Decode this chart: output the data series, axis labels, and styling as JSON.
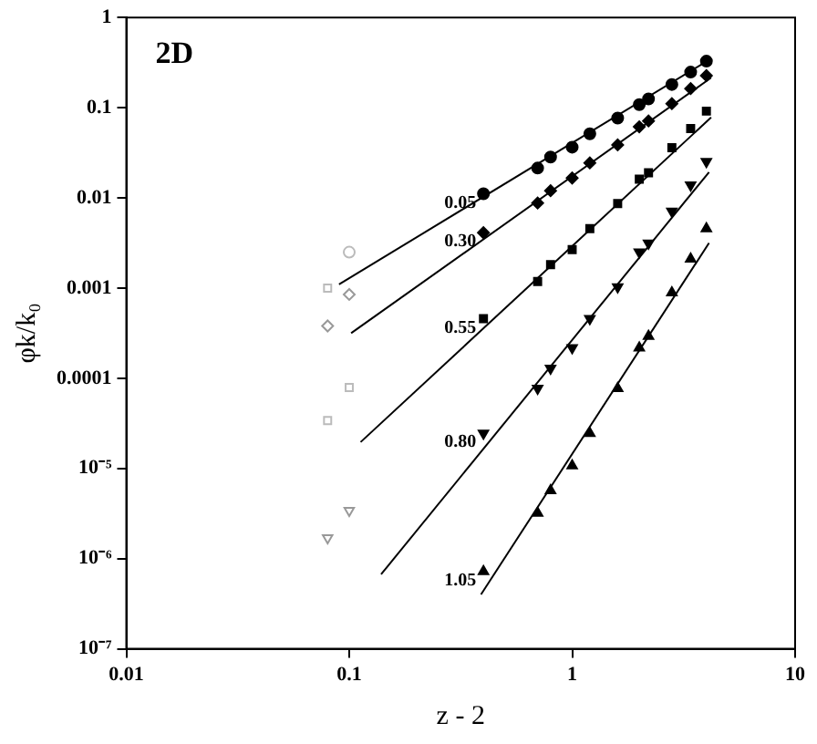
{
  "chart_data": {
    "type": "scatter",
    "xlabel": "z - 2",
    "ylabel": "φk/k₀",
    "log": "xy",
    "grid": false,
    "legend": false,
    "xlim": [
      0.01,
      10
    ],
    "xticks": [
      0.01,
      0.1,
      1,
      10
    ],
    "ylim": [
      1e-07,
      1
    ],
    "yticks": [
      {
        "value": 1e-07,
        "label": "10⁻⁷"
      },
      {
        "value": 1e-06,
        "label": "10⁻⁶"
      },
      {
        "value": 1e-05,
        "label": "10⁻⁵"
      },
      0.0001,
      0.001,
      0.01,
      0.1,
      1
    ],
    "annotations": [
      "2D"
    ],
    "series": [
      {
        "type": "scatter",
        "name": "0.05",
        "marker": "circle",
        "color": "#000000",
        "x": [
          0.4,
          0.7,
          0.8,
          1.0,
          1.2,
          1.6,
          2.0,
          2.2,
          2.8,
          3.4,
          4.0
        ],
        "values": [
          0.0111,
          0.0214,
          0.0284,
          0.0365,
          0.0513,
          0.0767,
          0.108,
          0.125,
          0.181,
          0.248,
          0.328
        ]
      },
      {
        "type": "scatter",
        "name": "0.30",
        "marker": "diamond",
        "color": "#000000",
        "x": [
          0.4,
          0.7,
          0.8,
          1.0,
          1.2,
          1.6,
          2.0,
          2.2,
          2.8,
          3.4,
          4.0
        ],
        "values": [
          0.00411,
          0.00877,
          0.012,
          0.0166,
          0.0244,
          0.0387,
          0.0614,
          0.0712,
          0.111,
          0.163,
          0.227
        ]
      },
      {
        "type": "scatter",
        "name": "0.55",
        "marker": "square",
        "color": "#000000",
        "x": [
          0.4,
          0.7,
          0.8,
          1.0,
          1.2,
          1.6,
          2.0,
          2.2,
          2.8,
          3.4,
          4.0
        ],
        "values": [
          0.000457,
          0.00118,
          0.00182,
          0.00267,
          0.00457,
          0.00865,
          0.0161,
          0.019,
          0.036,
          0.0588,
          0.0916
        ]
      },
      {
        "type": "scatter",
        "name": "0.80",
        "marker": "triangle-down",
        "color": "#000000",
        "x": [
          0.4,
          0.7,
          0.8,
          1.0,
          1.2,
          1.6,
          2.0,
          2.2,
          2.8,
          3.4,
          4.0
        ],
        "values": [
          2.45e-05,
          7.7e-05,
          0.000129,
          0.000218,
          0.000457,
          0.00103,
          0.0025,
          0.00315,
          0.0071,
          0.0139,
          0.0252
        ]
      },
      {
        "type": "scatter",
        "name": "1.05",
        "marker": "triangle",
        "color": "#000000",
        "x": [
          0.4,
          0.7,
          0.8,
          1.0,
          1.2,
          1.6,
          2.0,
          2.2,
          2.8,
          3.4,
          4.0
        ],
        "values": [
          7.2e-07,
          3.2e-06,
          5.7e-06,
          1.07e-05,
          2.45e-05,
          7.7e-05,
          0.000218,
          0.000293,
          0.00089,
          0.0021,
          0.00457
        ]
      },
      {
        "type": "scatter",
        "marker": "circle",
        "color": "#bbbbbb",
        "x": [
          0.1
        ],
        "values": [
          0.0025
        ]
      },
      {
        "type": "scatter",
        "marker": "square",
        "color": "#bbbbbb",
        "x": [
          0.08,
          0.1,
          0.08
        ],
        "values": [
          0.001,
          7.9e-05,
          3.4e-05
        ]
      },
      {
        "type": "scatter",
        "marker": "diamond",
        "color": "#999999",
        "x": [
          0.1,
          0.08
        ],
        "values": [
          0.00085,
          0.00038
        ]
      },
      {
        "type": "scatter",
        "marker": "triangle-down",
        "color": "#999999",
        "x": [
          0.1,
          0.08
        ],
        "values": [
          3.4e-06,
          1.7e-06
        ]
      },
      {
        "type": "line",
        "marker": "none",
        "color": "#000000",
        "x": [
          0.09,
          4.2
        ],
        "values": [
          0.0011,
          0.35
        ]
      },
      {
        "type": "line",
        "marker": "none",
        "color": "#000000",
        "x": [
          0.102,
          4.2
        ],
        "values": [
          0.000316,
          0.215
        ]
      },
      {
        "type": "line",
        "marker": "none",
        "color": "#000000",
        "x": [
          0.1125,
          4.2
        ],
        "values": [
          1.96e-05,
          0.078
        ]
      },
      {
        "type": "line",
        "marker": "none",
        "color": "#000000",
        "x": [
          0.139,
          4.11
        ],
        "values": [
          6.7e-07,
          0.0193
        ]
      },
      {
        "type": "line",
        "marker": "none",
        "color": "#000000",
        "x": [
          0.39,
          4.11
        ],
        "values": [
          4e-07,
          0.00316
        ]
      }
    ]
  }
}
